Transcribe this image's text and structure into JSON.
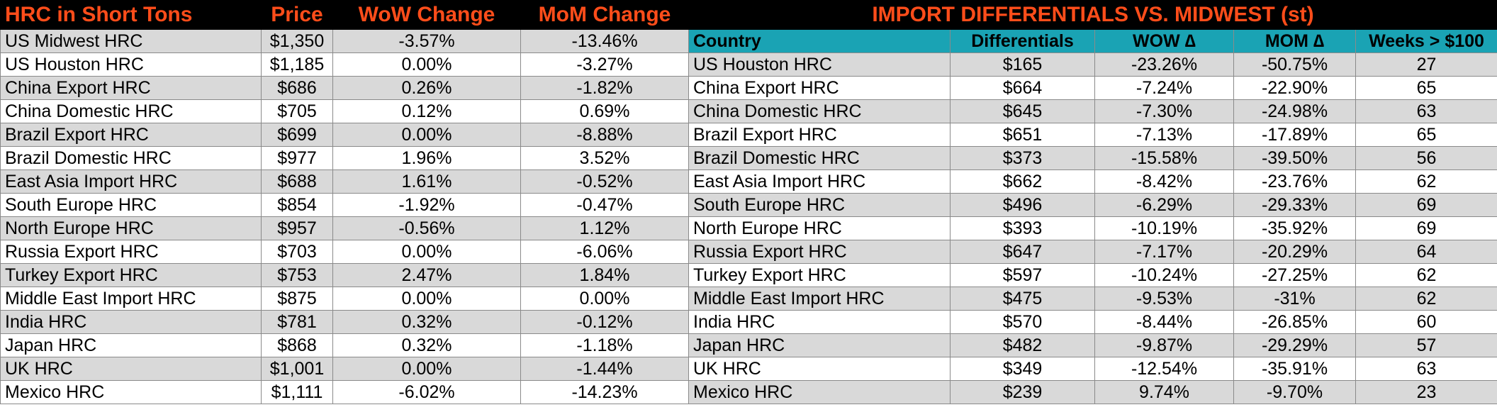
{
  "left_table": {
    "headers": [
      "HRC in Short Tons",
      "Price",
      "WoW Change",
      "MoM Change"
    ],
    "rows": [
      [
        "US Midwest HRC",
        "$1,350",
        "-3.57%",
        "-13.46%"
      ],
      [
        "US Houston HRC",
        "$1,185",
        "0.00%",
        "-3.27%"
      ],
      [
        "China Export HRC",
        "$686",
        "0.26%",
        "-1.82%"
      ],
      [
        "China Domestic HRC",
        "$705",
        "0.12%",
        "0.69%"
      ],
      [
        "Brazil Export HRC",
        "$699",
        "0.00%",
        "-8.88%"
      ],
      [
        "Brazil Domestic HRC",
        "$977",
        "1.96%",
        "3.52%"
      ],
      [
        "East Asia Import HRC",
        "$688",
        "1.61%",
        "-0.52%"
      ],
      [
        "South Europe HRC",
        "$854",
        "-1.92%",
        "-0.47%"
      ],
      [
        "North Europe HRC",
        "$957",
        "-0.56%",
        "1.12%"
      ],
      [
        "Russia Export HRC",
        "$703",
        "0.00%",
        "-6.06%"
      ],
      [
        "Turkey Export HRC",
        "$753",
        "2.47%",
        "1.84%"
      ],
      [
        "Middle East Import HRC",
        "$875",
        "0.00%",
        "0.00%"
      ],
      [
        "India HRC",
        "$781",
        "0.32%",
        "-0.12%"
      ],
      [
        "Japan HRC",
        "$868",
        "0.32%",
        "-1.18%"
      ],
      [
        "UK HRC",
        "$1,001",
        "0.00%",
        "-1.44%"
      ],
      [
        "Mexico HRC",
        "$1,111",
        "-6.02%",
        "-14.23%"
      ]
    ]
  },
  "right_table": {
    "title": "IMPORT DIFFERENTIALS VS. MIDWEST (st)",
    "headers": [
      "Country",
      "Differentials",
      "WOW ∆",
      "MOM ∆",
      "Weeks > $100"
    ],
    "rows": [
      [
        "US Houston HRC",
        "$165",
        "-23.26%",
        "-50.75%",
        "27"
      ],
      [
        "China Export HRC",
        "$664",
        "-7.24%",
        "-22.90%",
        "65"
      ],
      [
        "China Domestic HRC",
        "$645",
        "-7.30%",
        "-24.98%",
        "63"
      ],
      [
        "Brazil Export HRC",
        "$651",
        "-7.13%",
        "-17.89%",
        "65"
      ],
      [
        "Brazil Domestic HRC",
        "$373",
        "-15.58%",
        "-39.50%",
        "56"
      ],
      [
        "East Asia Import HRC",
        "$662",
        "-8.42%",
        "-23.76%",
        "62"
      ],
      [
        "South Europe HRC",
        "$496",
        "-6.29%",
        "-29.33%",
        "69"
      ],
      [
        "North Europe HRC",
        "$393",
        "-10.19%",
        "-35.92%",
        "69"
      ],
      [
        "Russia Export HRC",
        "$647",
        "-7.17%",
        "-20.29%",
        "64"
      ],
      [
        "Turkey Export HRC",
        "$597",
        "-10.24%",
        "-27.25%",
        "62"
      ],
      [
        "Middle East Import HRC",
        "$475",
        "-9.53%",
        "-31%",
        "62"
      ],
      [
        "India HRC",
        "$570",
        "-8.44%",
        "-26.85%",
        "60"
      ],
      [
        "Japan HRC",
        "$482",
        "-9.87%",
        "-29.29%",
        "57"
      ],
      [
        "UK HRC",
        "$349",
        "-12.54%",
        "-35.91%",
        "63"
      ],
      [
        "Mexico HRC",
        "$239",
        "9.74%",
        "-9.70%",
        "23"
      ]
    ]
  },
  "colors": {
    "header_bg": "#000000",
    "header_text": "#ff4d1a",
    "subheader_bg": "#1aa3b4",
    "row_alt": "#d9d9d9"
  }
}
